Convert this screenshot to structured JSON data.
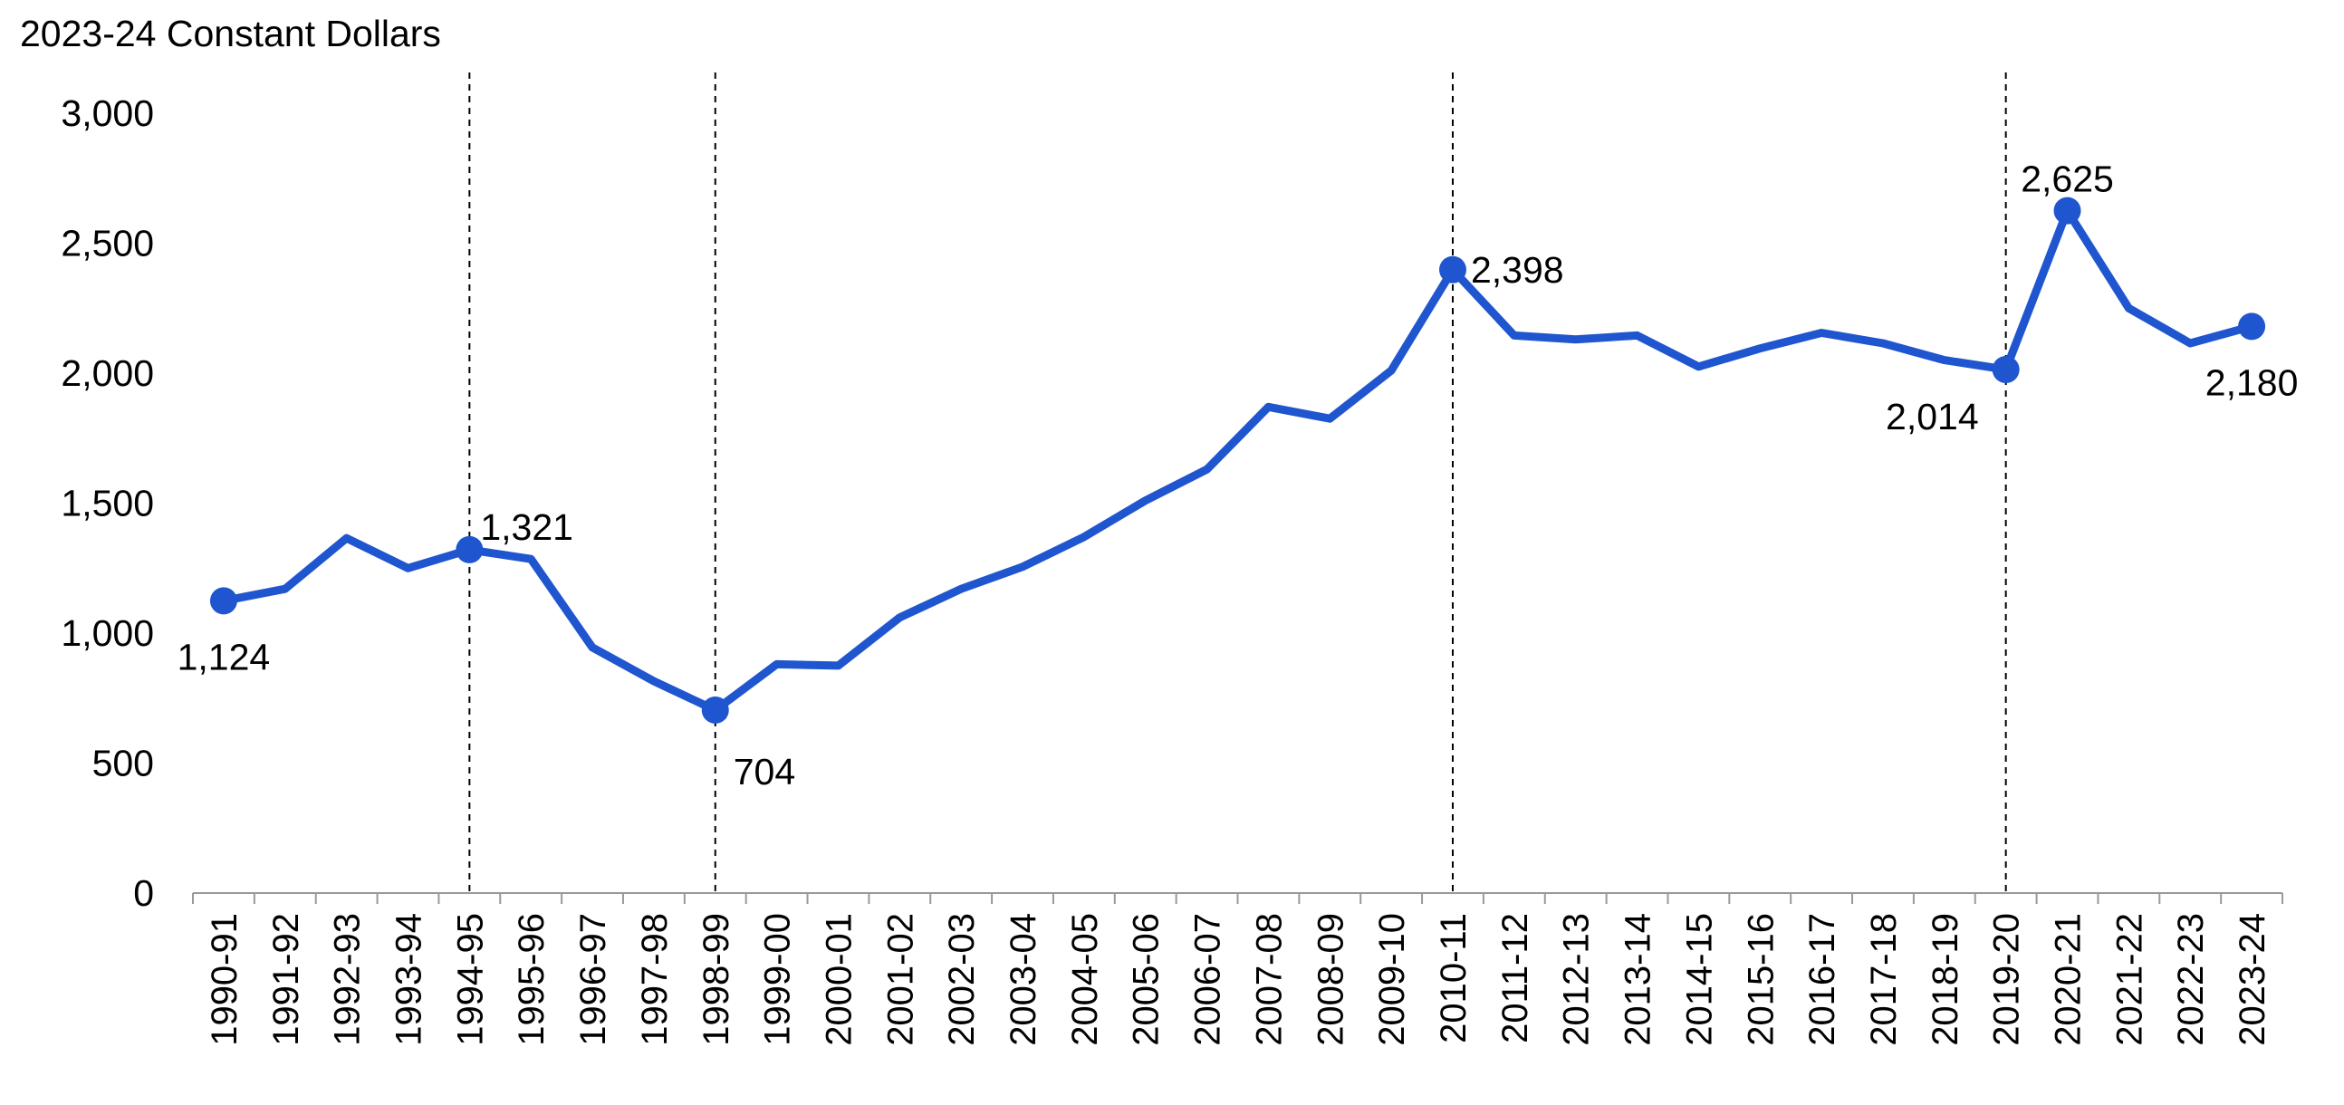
{
  "chart_data": {
    "type": "line",
    "title": "",
    "ylabel": "2023-24 Constant Dollars",
    "xlabel": "",
    "ylim": [
      0,
      3000
    ],
    "yticks": [
      0,
      500,
      1000,
      1500,
      2000,
      2500,
      3000
    ],
    "ytick_labels": [
      "0",
      "500",
      "1,000",
      "1,500",
      "2,000",
      "2,500",
      "3,000"
    ],
    "grid": false,
    "legend": "none",
    "line_color": "#1f56cf",
    "categories": [
      "1990-91",
      "1991-92",
      "1992-93",
      "1993-94",
      "1994-95",
      "1995-96",
      "1996-97",
      "1997-98",
      "1998-99",
      "1999-00",
      "2000-01",
      "2001-02",
      "2002-03",
      "2003-04",
      "2004-05",
      "2005-06",
      "2006-07",
      "2007-08",
      "2008-09",
      "2009-10",
      "2010-11",
      "2011-12",
      "2012-13",
      "2013-14",
      "2014-15",
      "2015-16",
      "2016-17",
      "2017-18",
      "2018-19",
      "2019-20",
      "2020-21",
      "2021-22",
      "2022-23",
      "2023-24"
    ],
    "values": [
      1124,
      1170,
      1365,
      1250,
      1321,
      1285,
      945,
      815,
      704,
      880,
      875,
      1060,
      1170,
      1255,
      1370,
      1510,
      1630,
      1870,
      1825,
      2010,
      2398,
      2145,
      2130,
      2145,
      2025,
      2095,
      2155,
      2115,
      2050,
      2014,
      2625,
      2250,
      2115,
      2180
    ],
    "annotations": [
      {
        "category": "1990-91",
        "value": 1124,
        "label": "1,124",
        "position": "below"
      },
      {
        "category": "1994-95",
        "value": 1321,
        "label": "1,321",
        "position": "above-right"
      },
      {
        "category": "1998-99",
        "value": 704,
        "label": "704",
        "position": "below-right"
      },
      {
        "category": "2010-11",
        "value": 2398,
        "label": "2,398",
        "position": "right"
      },
      {
        "category": "2019-20",
        "value": 2014,
        "label": "2,014",
        "position": "below-left"
      },
      {
        "category": "2020-21",
        "value": 2625,
        "label": "2,625",
        "position": "above"
      },
      {
        "category": "2023-24",
        "value": 2180,
        "label": "2,180",
        "position": "below"
      }
    ],
    "vertical_dashed_lines": [
      "1994-95",
      "1998-99",
      "2010-11",
      "2019-20"
    ]
  }
}
